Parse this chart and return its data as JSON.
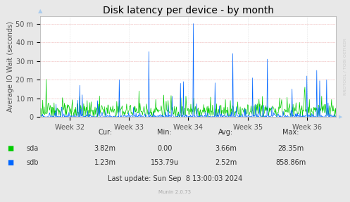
{
  "title": "Disk latency per device - by month",
  "ylabel": "Average IO Wait (seconds)",
  "outer_bg": "#e8e8e8",
  "plot_bg": "#ffffff",
  "grid_color": "#cccccc",
  "ytick_labels": [
    "0",
    "10 m",
    "20 m",
    "30 m",
    "40 m",
    "50 m"
  ],
  "ytick_vals": [
    0,
    10,
    20,
    30,
    40,
    50
  ],
  "ylim_max": 54,
  "xtick_labels": [
    "Week 32",
    "Week 33",
    "Week 34",
    "Week 35",
    "Week 36"
  ],
  "sda_color": "#00cc00",
  "sdb_color": "#0066ff",
  "legend": {
    "sda": {
      "cur": "3.82m",
      "min": "0.00",
      "avg": "3.66m",
      "max": "28.35m"
    },
    "sdb": {
      "cur": "1.23m",
      "min": "153.79u",
      "avg": "2.52m",
      "max": "858.86m"
    }
  },
  "footer": "Last update: Sun Sep  8 13:00:03 2024",
  "munin_version": "Munin 2.0.73",
  "watermark": "RRDTOOL / TOBI OETIKER",
  "title_fontsize": 10,
  "tick_fontsize": 7,
  "legend_fontsize": 7,
  "num_points": 600
}
